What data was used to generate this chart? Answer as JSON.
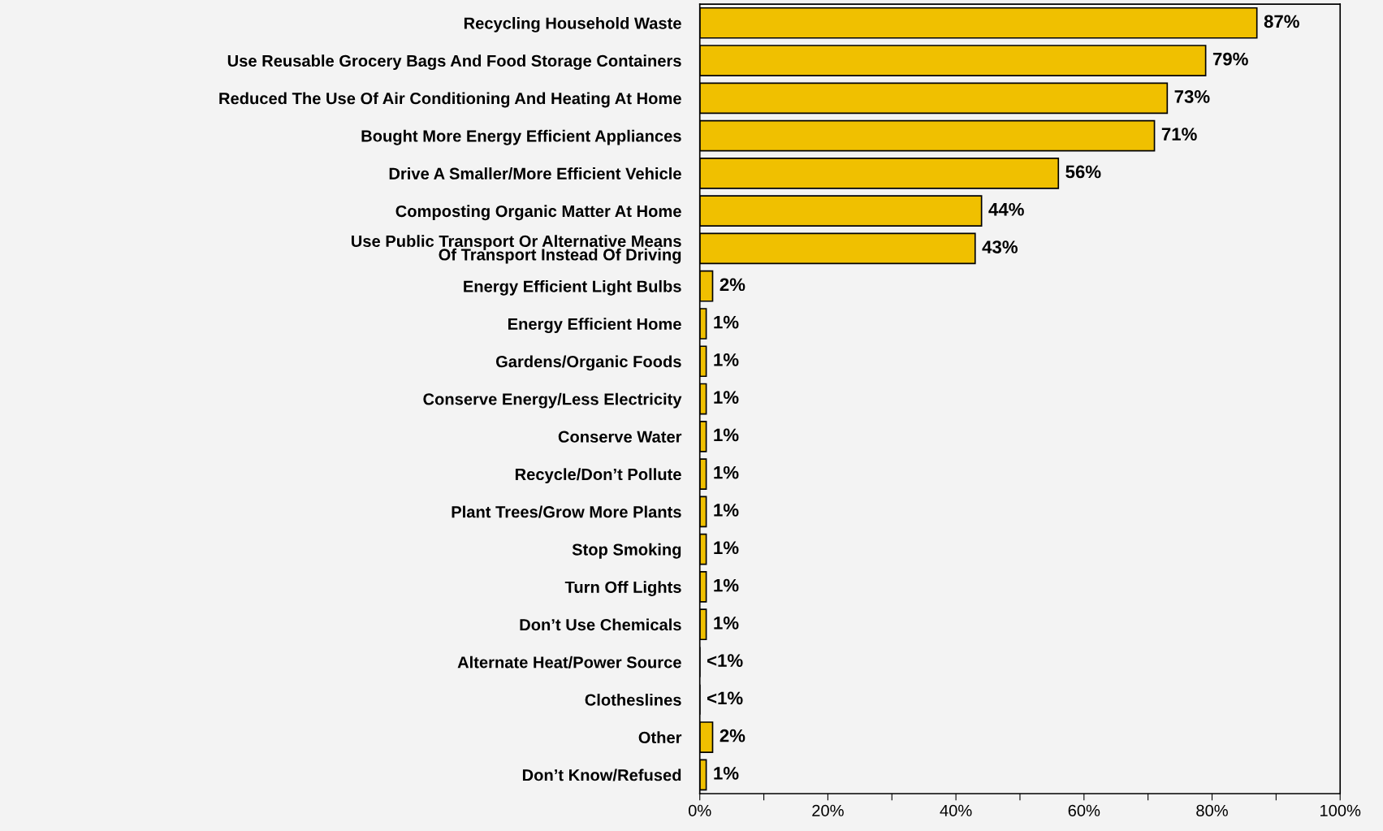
{
  "chart_data": {
    "type": "bar",
    "orientation": "horizontal",
    "categories": [
      "Recycling Household Waste",
      "Use Reusable Grocery Bags And Food Storage Containers",
      "Reduced The Use Of Air Conditioning And Heating At Home",
      "Bought More Energy Efficient Appliances",
      "Drive A Smaller/More Efficient Vehicle",
      "Composting Organic Matter At Home",
      "Use Public Transport Or Alternative Means\nOf Transport Instead Of Driving",
      "Energy Efficient Light Bulbs",
      "Energy Efficient Home",
      "Gardens/Organic Foods",
      "Conserve Energy/Less Electricity",
      "Conserve Water",
      "Recycle/Don’t Pollute",
      "Plant Trees/Grow More Plants",
      "Stop Smoking",
      "Turn Off Lights",
      "Don’t Use Chemicals",
      "Alternate Heat/Power Source",
      "Clotheslines",
      "Other",
      "Don’t Know/Refused"
    ],
    "values": [
      87,
      79,
      73,
      71,
      56,
      44,
      43,
      2,
      1,
      1,
      1,
      1,
      1,
      1,
      1,
      1,
      1,
      0,
      0,
      2,
      1
    ],
    "value_labels": [
      "87%",
      "79%",
      "73%",
      "71%",
      "56%",
      "44%",
      "43%",
      "2%",
      "1%",
      "1%",
      "1%",
      "1%",
      "1%",
      "1%",
      "1%",
      "1%",
      "1%",
      "<1%",
      "<1%",
      "2%",
      "1%"
    ],
    "color": "#f0c000",
    "xlim": [
      0,
      100
    ],
    "xticks": [
      {
        "value": 0,
        "label": "0%"
      },
      {
        "value": 10,
        "label": null
      },
      {
        "value": 20,
        "label": "20%"
      },
      {
        "value": 30,
        "label": null
      },
      {
        "value": 40,
        "label": "40%"
      },
      {
        "value": 50,
        "label": null
      },
      {
        "value": 60,
        "label": "60%"
      },
      {
        "value": 70,
        "label": null
      },
      {
        "value": 80,
        "label": "80%"
      },
      {
        "value": 90,
        "label": null
      },
      {
        "value": 100,
        "label": "100%"
      }
    ],
    "grid": false,
    "legend": false
  }
}
